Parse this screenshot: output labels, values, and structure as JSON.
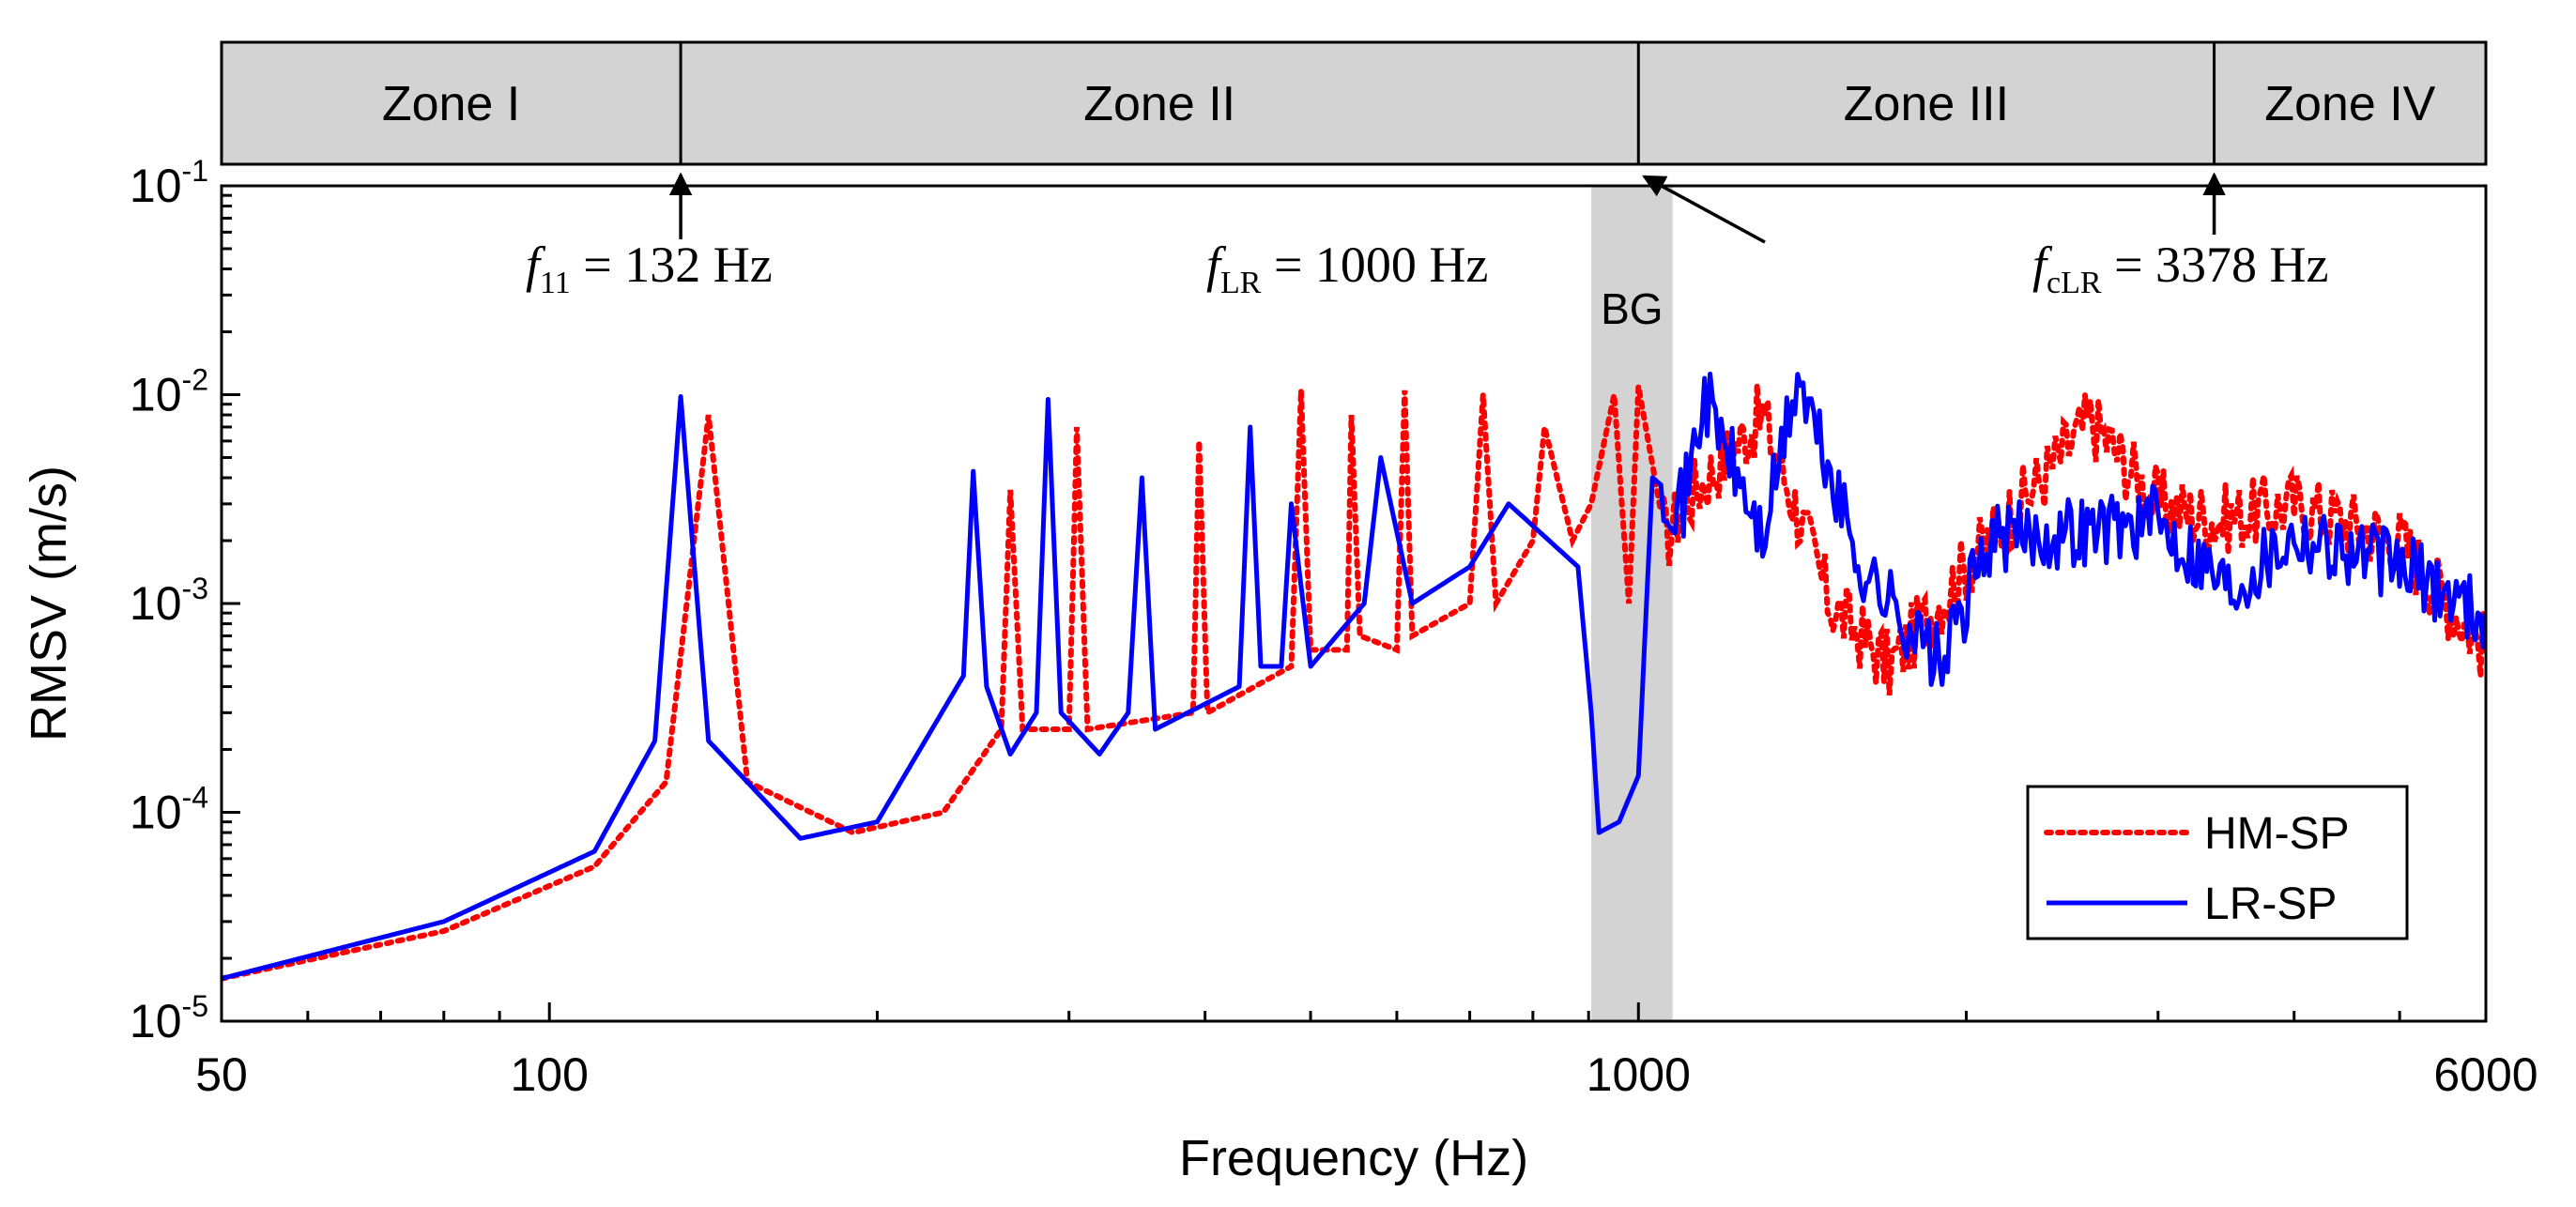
{
  "chart_data": {
    "type": "line",
    "xscale": "log",
    "yscale": "log",
    "xlim": [
      50,
      6000
    ],
    "ylim_exponents": [
      -5,
      -1
    ],
    "xlabel": "Frequency (Hz)",
    "ylabel": "RMSV (m/s)",
    "x_ticks": [
      {
        "value": 50,
        "label": "50"
      },
      {
        "value": 100,
        "label": "100"
      },
      {
        "value": 1000,
        "label": "1000"
      },
      {
        "value": 6000,
        "label": "6000"
      }
    ],
    "y_ticks": [
      {
        "exp": -5,
        "base": "10",
        "sup": "-5"
      },
      {
        "exp": -4,
        "base": "10",
        "sup": "-4"
      },
      {
        "exp": -3,
        "base": "10",
        "sup": "-3"
      },
      {
        "exp": -2,
        "base": "10",
        "sup": "-2"
      },
      {
        "exp": -1,
        "base": "10",
        "sup": "-1"
      }
    ],
    "zones": [
      {
        "label": "Zone I",
        "from": 50,
        "to": 132
      },
      {
        "label": "Zone II",
        "from": 132,
        "to": 1000
      },
      {
        "label": "Zone III",
        "from": 1000,
        "to": 3378
      },
      {
        "label": "Zone IV",
        "from": 3378,
        "to": 6000
      }
    ],
    "band_gap": {
      "label": "BG",
      "from": 905,
      "to": 1075,
      "color": "#d3d3d3"
    },
    "annotations": [
      {
        "sym": "f",
        "sub": "11",
        "text": " = 132 Hz",
        "freq": 132,
        "arrow": "up"
      },
      {
        "sym": "f",
        "sub": "LR",
        "text": " = 1000 Hz",
        "freq": 1000,
        "arrow": "diagonal"
      },
      {
        "sym": "f",
        "sub": "cLR",
        "text": " = 3378 Hz",
        "freq": 3378,
        "arrow": "up"
      }
    ],
    "series": [
      {
        "name": "HM-SP",
        "color": "#ff0000",
        "style": "dotted",
        "anchors": [
          [
            50,
            1.6e-05
          ],
          [
            80,
            2.7e-05
          ],
          [
            110,
            5.5e-05
          ],
          [
            128,
            0.00014
          ],
          [
            140,
            0.008
          ],
          [
            152,
            0.00014
          ],
          [
            190,
            8e-05
          ],
          [
            230,
            0.0001
          ],
          [
            260,
            0.00025
          ],
          [
            265,
            0.0035
          ],
          [
            272,
            0.00025
          ],
          [
            300,
            0.00025
          ],
          [
            305,
            0.007
          ],
          [
            312,
            0.00025
          ],
          [
            390,
            0.0003
          ],
          [
            395,
            0.006
          ],
          [
            402,
            0.0003
          ],
          [
            480,
            0.0005
          ],
          [
            490,
            0.0105
          ],
          [
            500,
            0.0006
          ],
          [
            540,
            0.0006
          ],
          [
            545,
            0.008
          ],
          [
            555,
            0.0007
          ],
          [
            600,
            0.0006
          ],
          [
            610,
            0.0105
          ],
          [
            620,
            0.0007
          ],
          [
            700,
            0.001
          ],
          [
            720,
            0.01
          ],
          [
            740,
            0.001
          ],
          [
            800,
            0.002
          ],
          [
            820,
            0.007
          ],
          [
            870,
            0.002
          ],
          [
            905,
            0.003
          ],
          [
            950,
            0.01
          ],
          [
            980,
            0.001
          ],
          [
            1000,
            0.011
          ],
          [
            1060,
            0.002
          ],
          [
            1100,
            0.003
          ],
          [
            1300,
            0.008
          ],
          [
            1500,
            0.001
          ],
          [
            1700,
            0.0005
          ],
          [
            2000,
            0.0015
          ],
          [
            2600,
            0.0075
          ],
          [
            3000,
            0.003
          ],
          [
            3400,
            0.0025
          ],
          [
            4000,
            0.003
          ],
          [
            5000,
            0.002
          ],
          [
            6000,
            0.0006
          ]
        ]
      },
      {
        "name": "LR-SP",
        "color": "#0000ff",
        "style": "solid",
        "anchors": [
          [
            50,
            1.6e-05
          ],
          [
            80,
            3e-05
          ],
          [
            110,
            6.5e-05
          ],
          [
            125,
            0.00022
          ],
          [
            132,
            0.0098
          ],
          [
            140,
            0.00022
          ],
          [
            170,
            7.5e-05
          ],
          [
            200,
            9e-05
          ],
          [
            240,
            0.00045
          ],
          [
            245,
            0.0043
          ],
          [
            252,
            0.0004
          ],
          [
            265,
            0.00019
          ],
          [
            280,
            0.0003
          ],
          [
            287,
            0.0095
          ],
          [
            295,
            0.0003
          ],
          [
            320,
            0.00019
          ],
          [
            340,
            0.0003
          ],
          [
            350,
            0.004
          ],
          [
            360,
            0.00025
          ],
          [
            430,
            0.0004
          ],
          [
            440,
            0.007
          ],
          [
            450,
            0.0005
          ],
          [
            470,
            0.0005
          ],
          [
            480,
            0.003
          ],
          [
            500,
            0.0005
          ],
          [
            560,
            0.001
          ],
          [
            580,
            0.005
          ],
          [
            620,
            0.001
          ],
          [
            700,
            0.0015
          ],
          [
            760,
            0.003
          ],
          [
            880,
            0.0015
          ],
          [
            905,
            0.0003
          ],
          [
            920,
            8e-05
          ],
          [
            960,
            9e-05
          ],
          [
            1000,
            0.00015
          ],
          [
            1030,
            0.004
          ],
          [
            1100,
            0.003
          ],
          [
            1150,
            0.01
          ],
          [
            1300,
            0.002
          ],
          [
            1400,
            0.012
          ],
          [
            1600,
            0.0015
          ],
          [
            1900,
            0.0005
          ],
          [
            2100,
            0.002
          ],
          [
            3000,
            0.0025
          ],
          [
            3500,
            0.0012
          ],
          [
            4000,
            0.0022
          ],
          [
            5000,
            0.0015
          ],
          [
            6000,
            0.0009
          ]
        ]
      }
    ],
    "legend": {
      "position": "bottom-right"
    }
  }
}
